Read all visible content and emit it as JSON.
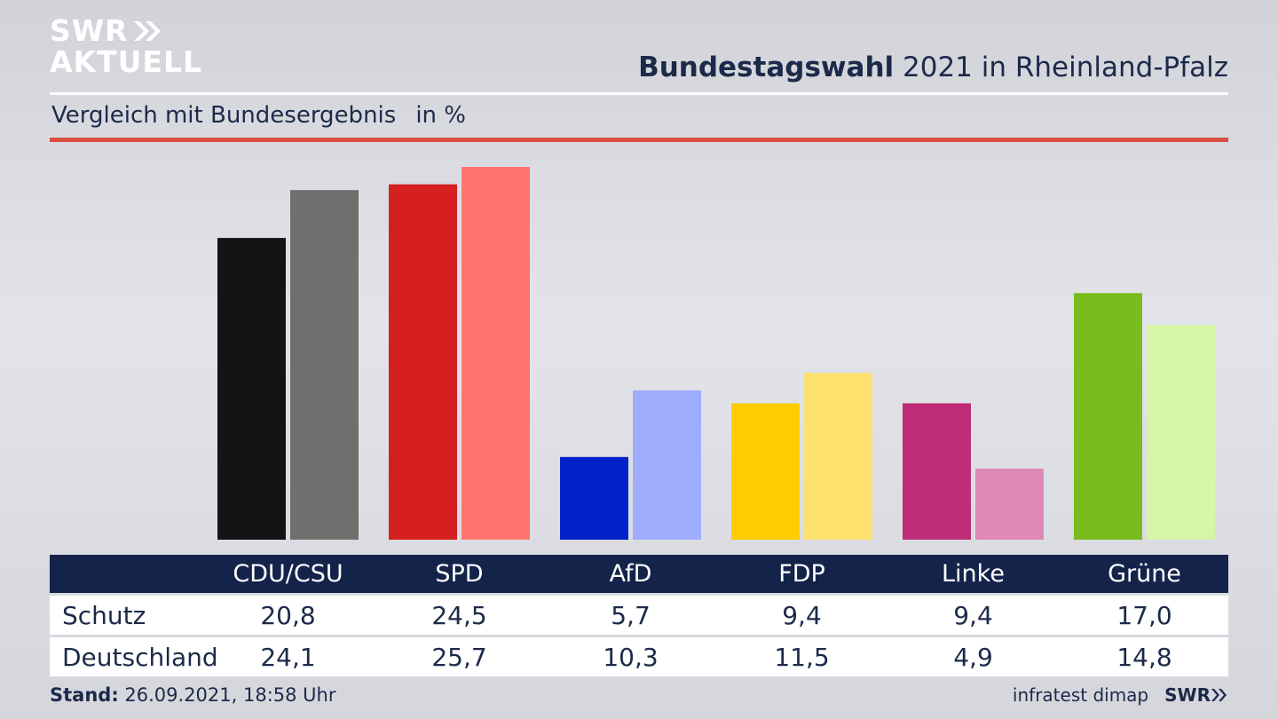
{
  "logo": {
    "line1": "SWR",
    "line2": "AKTUELL"
  },
  "header": {
    "title_bold": "Bundestagswahl",
    "title_rest": " 2021 in Rheinland-Pfalz"
  },
  "subtitle": {
    "text": "Vergleich mit Bundesergebnis",
    "unit": "in %"
  },
  "chart_data": {
    "type": "bar",
    "categories": [
      "CDU/CSU",
      "SPD",
      "AfD",
      "FDP",
      "Linke",
      "Grüne"
    ],
    "series": [
      {
        "name": "Schutz",
        "values": [
          20.8,
          24.5,
          5.7,
          9.4,
          9.4,
          17.0
        ],
        "labels": [
          "20,8",
          "24,5",
          "5,7",
          "9,4",
          "9,4",
          "17,0"
        ]
      },
      {
        "name": "Deutschland",
        "values": [
          24.1,
          25.7,
          10.3,
          11.5,
          4.9,
          14.8
        ],
        "labels": [
          "24,1",
          "25,7",
          "10,3",
          "11,5",
          "4,9",
          "14,8"
        ]
      }
    ],
    "colors": {
      "series0": [
        "#141414",
        "#d61f1f",
        "#0022c8",
        "#ffcc00",
        "#be2d78",
        "#78bc1e"
      ],
      "series1": [
        "#706f6e",
        "#ff756e",
        "#9fadff",
        "#fde16f",
        "#de89b6",
        "#d6f6a7"
      ]
    },
    "ylim": [
      0,
      25.7
    ]
  },
  "footer": {
    "stand_label": "Stand:",
    "stand_value": " 26.09.2021, 18:58 Uhr",
    "source": "infratest dimap",
    "brand": "SWR"
  }
}
